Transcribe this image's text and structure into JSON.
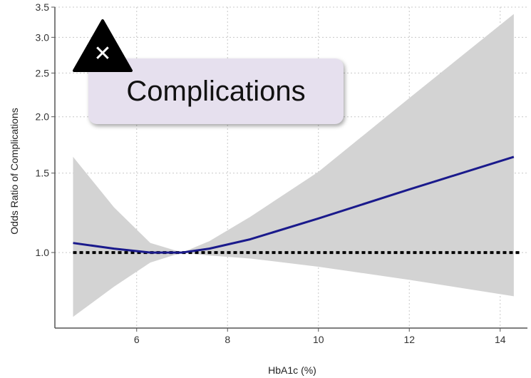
{
  "chart_data": {
    "type": "line",
    "xlabel": "HbA1c (%)",
    "ylabel": "Odds Ratio of Complications",
    "xlim": [
      4.2,
      14.6
    ],
    "ylim": [
      0.68,
      3.5
    ],
    "y_scale": "log",
    "grid": true,
    "x_ticks": [
      {
        "value": 6,
        "label": "6"
      },
      {
        "value": 8,
        "label": "8"
      },
      {
        "value": 10,
        "label": "10"
      },
      {
        "value": 12,
        "label": "12"
      },
      {
        "value": 14,
        "label": "14"
      }
    ],
    "y_ticks": [
      {
        "value": 1.0,
        "label": "1.0"
      },
      {
        "value": 1.5,
        "label": "1.5"
      },
      {
        "value": 2.0,
        "label": "2.0"
      },
      {
        "value": 2.5,
        "label": "2.5"
      },
      {
        "value": 3.0,
        "label": "3.0"
      },
      {
        "value": 3.5,
        "label": "3.5"
      }
    ],
    "series": [
      {
        "color": "#1a1a8c",
        "x": [
          4.6,
          5.5,
          6.3,
          7.0,
          7.6,
          8.5,
          10.0,
          12.0,
          14.3
        ],
        "y": [
          1.05,
          1.02,
          1.0,
          1.0,
          1.02,
          1.07,
          1.19,
          1.38,
          1.63
        ]
      }
    ],
    "confidence_band": {
      "color": "#d3d3d3",
      "x": [
        4.6,
        5.5,
        6.3,
        7.0,
        7.6,
        8.5,
        10.0,
        12.0,
        14.3
      ],
      "lower": [
        0.72,
        0.84,
        0.95,
        1.0,
        0.985,
        0.97,
        0.93,
        0.87,
        0.8
      ],
      "upper": [
        1.63,
        1.26,
        1.05,
        1.0,
        1.06,
        1.2,
        1.51,
        2.2,
        3.38
      ]
    },
    "reference_line": {
      "y": 1.0,
      "style": "dotted",
      "color": "#000000"
    }
  },
  "overlay": {
    "callout_text": "Complications",
    "icon": "warning-triangle-x-icon",
    "icon_glyph": "✕"
  }
}
